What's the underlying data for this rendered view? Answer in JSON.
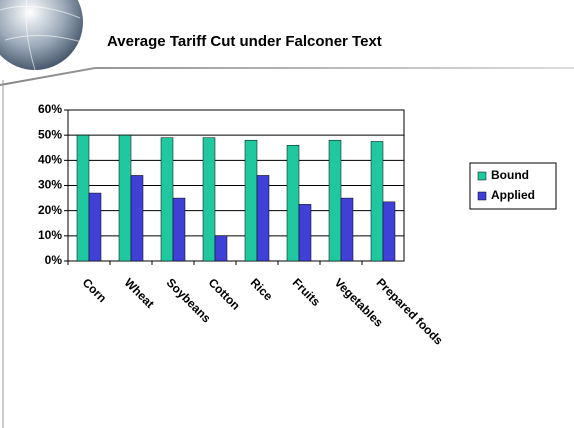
{
  "chart_data": {
    "type": "bar",
    "title": "Average Tariff Cut under Falconer Text",
    "categories": [
      "Corn",
      "Wheat",
      "Soybeans",
      "Cotton",
      "Rice",
      "Fruits",
      "Vegetables",
      "Prepared foods"
    ],
    "series": [
      {
        "name": "Bound",
        "color": "#20c8a0",
        "values": [
          50,
          50,
          49,
          49,
          48,
          46,
          48,
          47.5
        ]
      },
      {
        "name": "Applied",
        "color": "#4040d8",
        "values": [
          27,
          34,
          25,
          10,
          34,
          22.5,
          25,
          23.5
        ]
      }
    ],
    "ylim": [
      0,
      60
    ],
    "yticks": [
      {
        "value": 0,
        "label": "0%"
      },
      {
        "value": 10,
        "label": "10%"
      },
      {
        "value": 20,
        "label": "20%"
      },
      {
        "value": 30,
        "label": "30%"
      },
      {
        "value": 40,
        "label": "40%"
      },
      {
        "value": 50,
        "label": "50%"
      },
      {
        "value": 60,
        "label": "60%"
      }
    ],
    "grid": true,
    "legend": "right"
  }
}
